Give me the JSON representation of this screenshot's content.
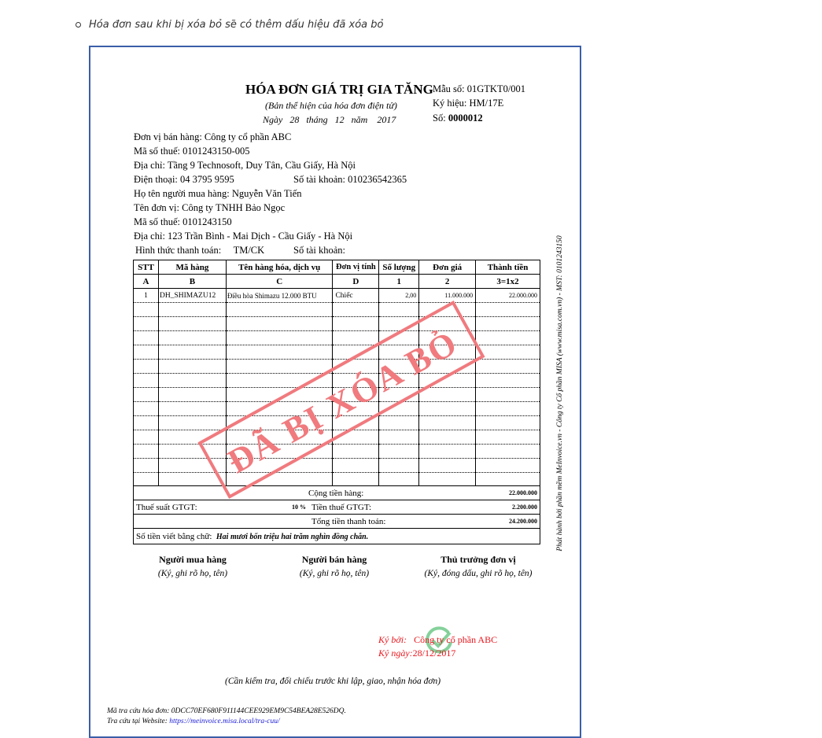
{
  "bullet_text": "Hóa đơn sau khi bị xóa bỏ sẽ có thêm dấu hiệu đã xóa bỏ",
  "invoice": {
    "title": "HÓA ĐƠN GIÁ TRỊ GIA TĂNG",
    "subtitle": "(Bản thể hiện của hóa đơn điện tử)",
    "date_line": "Ngày   28   tháng   12   năm    2017",
    "form_no": "Mẫu số:  01GTKT0/001",
    "symbol": "Ký hiệu:   HM/17E",
    "number_label": "Số:",
    "number": "0000012",
    "seller": [
      "Đơn vị bán hàng:   Công ty cổ phần ABC",
      "Mã số thuế:  0101243150-005",
      "Địa chỉ:  Tầng 9 Technosoft, Duy Tân, Cầu Giấy, Hà Nội",
      "Điện thoại:   04 3795 9595"
    ],
    "seller_account": "Số tài khoản:  010236542365",
    "buyer": [
      "Họ tên người mua hàng:   Nguyễn Văn Tiến",
      "Tên đơn vị:  Công ty TNHH Bảo Ngọc",
      "Mã số thuế:  0101243150",
      "Địa chỉ:  123 Trần Bình - Mai Dịch - Cầu Giấy - Hà Nội"
    ],
    "payment": "Hình thức thanh toán:     TM/CK",
    "buyer_account": "Số tài khoản:",
    "columns": [
      "STT",
      "Mã hàng",
      "Tên hàng hóa, dịch vụ",
      "Đơn vị tính",
      "Số lượng",
      "Đơn giá",
      "Thành tiền"
    ],
    "column_codes": [
      "A",
      "B",
      "C",
      "D",
      "1",
      "2",
      "3=1x2"
    ],
    "items": [
      {
        "stt": "1",
        "code": "DH_SHIMAZU12",
        "name": "Điều hòa Shimazu 12.000 BTU",
        "unit": "Chiếc",
        "qty": "2,00",
        "price": "11.000.000",
        "amount": "22.000.000"
      }
    ],
    "subtotal_label": "Cộng tiền hàng:",
    "subtotal": "22.000.000",
    "vat_rate_label": "Thuế suất GTGT:",
    "vat_rate": "10 %",
    "vat_label": "Tiền thuế GTGT:",
    "vat": "2.200.000",
    "total_label": "Tổng tiền thanh toán:",
    "total": "24.200.000",
    "words_label": "Số tiền viết bằng chữ:",
    "words": "Hai mươi bốn triệu hai trăm nghìn đồng chẵn.",
    "signers": [
      {
        "title": "Người mua hàng",
        "note": "(Ký, ghi rõ họ, tên)"
      },
      {
        "title": "Người bán hàng",
        "note": "(Ký, ghi rõ họ, tên)"
      },
      {
        "title": "Thủ trưởng đơn vị",
        "note": "(Ký, đóng dấu, ghi rõ họ, tên)"
      }
    ],
    "signed_by_label": "Ký bởi:",
    "signed_by": "Công ty cổ phần ABC",
    "signed_date_label": "Ký ngày:",
    "signed_date": "28/12/2017",
    "check_note": "(Cần kiểm tra, đối chiếu trước khi lập, giao, nhận hóa đơn)",
    "lookup_code": "Mã tra cứu hóa đơn: 0DCC70EF680F911144CEE929EM9C54BEA28E526DQ.",
    "lookup_site_label": "Tra cứu tại Website:",
    "lookup_site": "https://meinvoice.misa.local/tra-cuu/",
    "stamp": "ĐÃ BỊ XÓA BỎ",
    "stamp_color": "#f07a7e",
    "vertical_note": "Phát hành bởi phần mềm MeInvoice.vn - Công ty Cổ phần MISA (www.misa.com.vn) - MST: 0101243150"
  }
}
